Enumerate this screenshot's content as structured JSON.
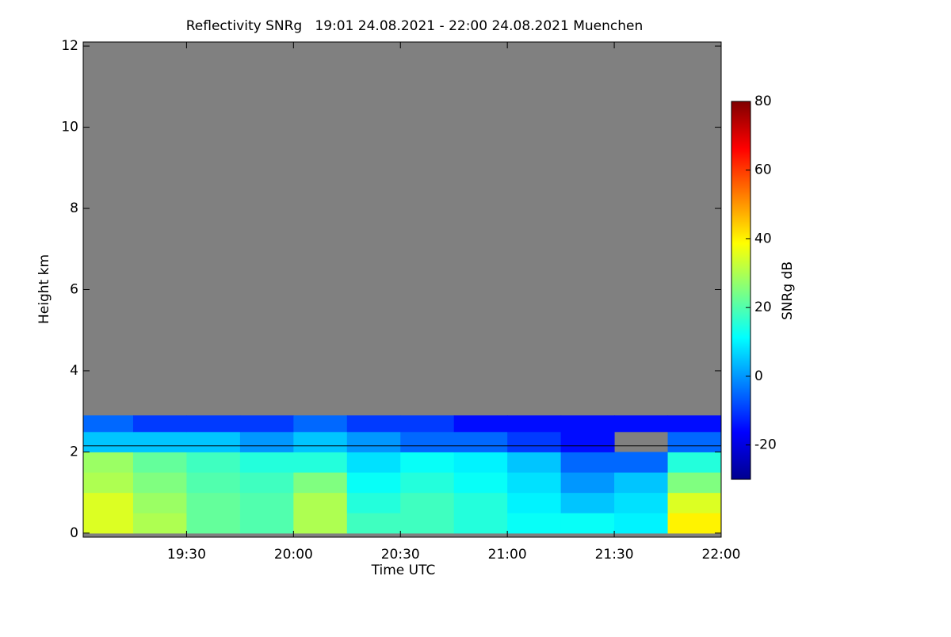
{
  "chart_data": {
    "type": "heatmap",
    "title": "Reflectivity SNRg   19:01 24.08.2021 - 22:00 24.08.2021 Muenchen",
    "xlabel": "Time UTC",
    "ylabel": "Height km",
    "colorbar_label": "SNRg dB",
    "x_bins": [
      19.0167,
      19.25,
      19.5,
      19.75,
      20,
      20.25,
      20.5,
      20.75,
      21,
      21.25,
      21.5,
      21.75,
      22
    ],
    "y_bins": [
      0,
      0.5,
      1,
      1.5,
      2,
      2.5,
      2.9,
      12
    ],
    "z": [
      [
        35,
        30,
        22,
        20,
        30,
        18,
        18,
        15,
        12,
        12,
        10,
        40
      ],
      [
        35,
        28,
        22,
        20,
        30,
        15,
        18,
        15,
        10,
        5,
        8,
        35
      ],
      [
        30,
        25,
        20,
        18,
        25,
        12,
        15,
        12,
        8,
        0,
        5,
        25
      ],
      [
        28,
        22,
        18,
        15,
        15,
        8,
        12,
        10,
        5,
        -5,
        -5,
        15
      ],
      [
        5,
        5,
        5,
        0,
        5,
        0,
        -5,
        -5,
        -10,
        -15,
        null,
        -5
      ],
      [
        -5,
        -10,
        -10,
        -10,
        -5,
        -10,
        -10,
        -15,
        -15,
        -15,
        -15,
        -15
      ],
      [
        null,
        null,
        null,
        null,
        null,
        null,
        null,
        null,
        null,
        null,
        null,
        null
      ]
    ],
    "xlim": [
      19.0167,
      22
    ],
    "xticks": [
      {
        "value": 19.5,
        "label": "19:30"
      },
      {
        "value": 20,
        "label": "20:00"
      },
      {
        "value": 20.5,
        "label": "20:30"
      },
      {
        "value": 21,
        "label": "21:00"
      },
      {
        "value": 21.5,
        "label": "21:30"
      },
      {
        "value": 22,
        "label": "22:00"
      }
    ],
    "ylim": [
      -0.1,
      12.1
    ],
    "yticks": [
      0,
      2,
      4,
      6,
      8,
      10,
      12
    ],
    "zlim": [
      -30,
      80
    ],
    "zticks": [
      -20,
      0,
      20,
      40,
      60,
      80
    ],
    "colormap": "jet",
    "missing_color": "#808080",
    "reference_line": 2.15
  }
}
